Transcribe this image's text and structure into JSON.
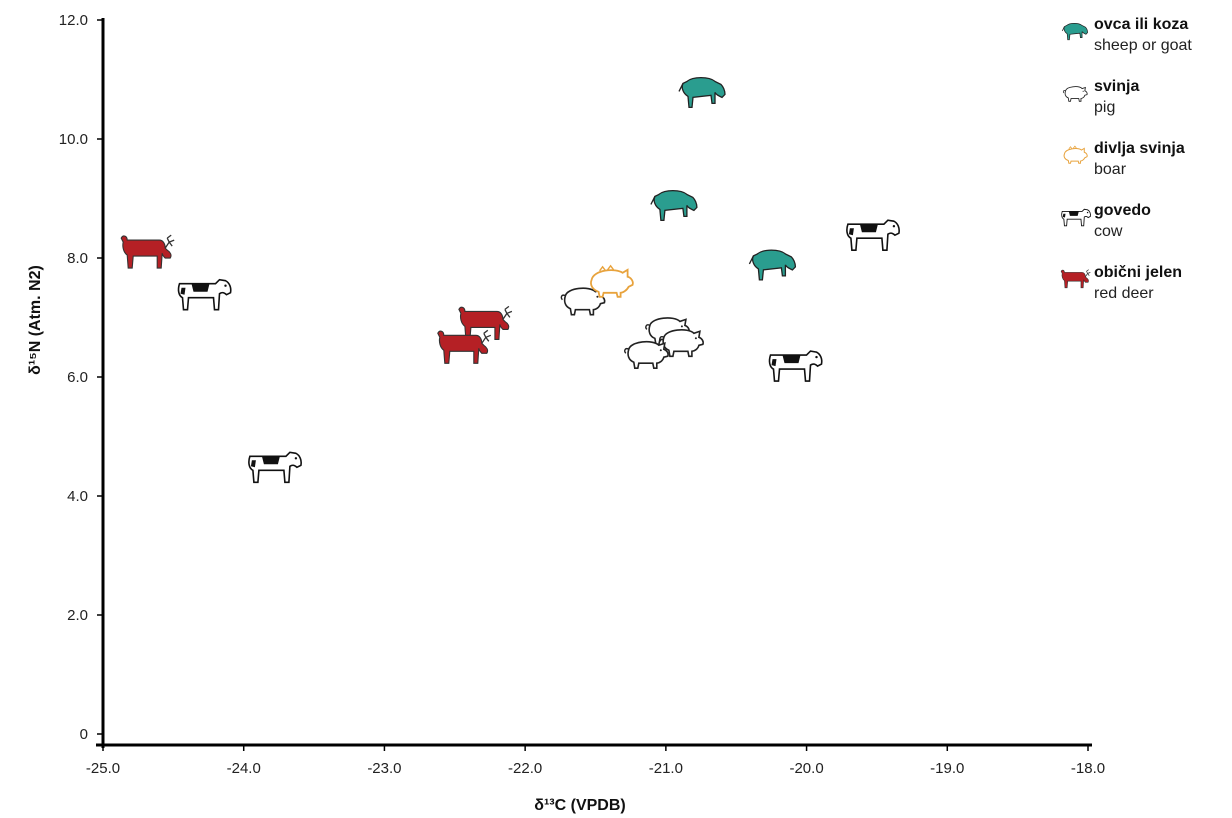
{
  "chart_data": {
    "type": "scatter",
    "title": "",
    "xlabel": "δ¹³C (VPDB)",
    "ylabel": "δ¹⁵N (Atm. N2)",
    "xlim": [
      -25.0,
      -18.0
    ],
    "ylim": [
      0,
      12.0
    ],
    "xticks": [
      "-25.0",
      "-24.0",
      "-23.0",
      "-22.0",
      "-21.0",
      "-20.0",
      "-19.0",
      "-18.0"
    ],
    "yticks": [
      "0",
      "2.0",
      "4.0",
      "6.0",
      "8.0",
      "10.0",
      "12.0"
    ],
    "grid": false,
    "legend_position": "top-right",
    "series": [
      {
        "name": "ovca ili koza",
        "name_en": "sheep or goat",
        "icon": "sheep-icon",
        "color": "#2a9d8f",
        "points": [
          [
            -20.75,
            10.8
          ],
          [
            -20.95,
            8.9
          ],
          [
            -20.25,
            7.9
          ]
        ]
      },
      {
        "name": "svinja",
        "name_en": "pig",
        "icon": "pig-icon",
        "color": "#222222",
        "points": [
          [
            -21.6,
            7.3
          ],
          [
            -21.0,
            6.8
          ],
          [
            -20.9,
            6.6
          ],
          [
            -21.15,
            6.4
          ]
        ]
      },
      {
        "name": "divlja svinja",
        "name_en": "boar",
        "icon": "boar-icon",
        "color": "#e8a33d",
        "points": [
          [
            -21.4,
            7.6
          ]
        ]
      },
      {
        "name": "govedo",
        "name_en": "cow",
        "icon": "cow-icon",
        "color": "#111111",
        "points": [
          [
            -24.3,
            7.4
          ],
          [
            -19.55,
            8.4
          ],
          [
            -20.1,
            6.2
          ],
          [
            -23.8,
            4.5
          ]
        ]
      },
      {
        "name": "obični jelen",
        "name_en": "red deer",
        "icon": "deer-icon",
        "color": "#b52025",
        "points": [
          [
            -24.7,
            8.1
          ],
          [
            -22.3,
            6.9
          ],
          [
            -22.45,
            6.5
          ]
        ]
      }
    ]
  }
}
